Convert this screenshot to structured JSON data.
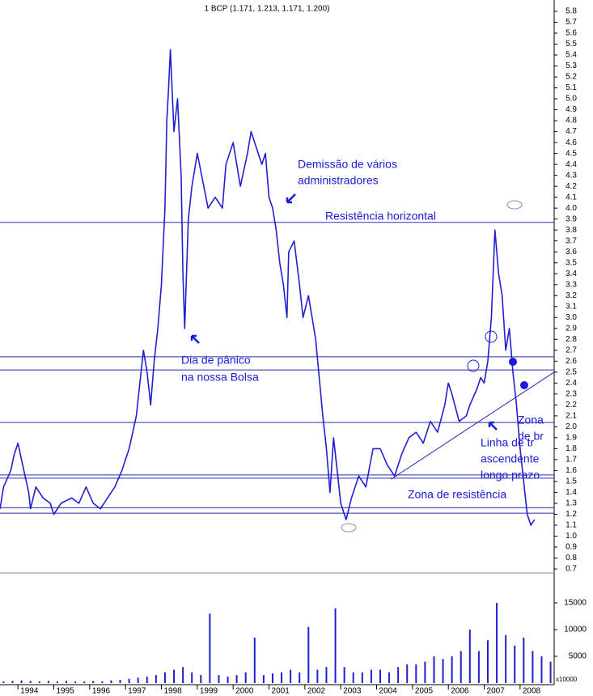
{
  "chart_data": {
    "type": "line",
    "title": "1 BCP (1.171, 1.213, 1.171, 1.200)",
    "color": "#2020d0",
    "x": [
      1993.5,
      1993.6,
      1993.8,
      1993.9,
      1994.0,
      1994.1,
      1994.2,
      1994.3,
      1994.35,
      1994.5,
      1994.7,
      1994.9,
      1995.0,
      1995.2,
      1995.5,
      1995.7,
      1995.9,
      1996.1,
      1996.3,
      1996.5,
      1996.7,
      1996.9,
      1997.1,
      1997.3,
      1997.4,
      1997.5,
      1997.6,
      1997.7,
      1997.8,
      1997.9,
      1998.0,
      1998.1,
      1998.15,
      1998.2,
      1998.25,
      1998.35,
      1998.45,
      1998.55,
      1998.6,
      1998.65,
      1998.75,
      1998.85,
      1999.0,
      1999.3,
      1999.5,
      1999.7,
      1999.8,
      2000.0,
      2000.2,
      2000.4,
      2000.5,
      2000.6,
      2000.8,
      2000.9,
      2001.0,
      2001.1,
      2001.2,
      2001.3,
      2001.4,
      2001.5,
      2001.55,
      2001.7,
      2001.85,
      2001.95,
      2002.1,
      2002.3,
      2002.5,
      2002.6,
      2002.7,
      2002.8,
      2002.9,
      2003.0,
      2003.15,
      2003.3,
      2003.5,
      2003.7,
      2003.9,
      2004.1,
      2004.3,
      2004.5,
      2004.7,
      2004.9,
      2005.1,
      2005.3,
      2005.5,
      2005.7,
      2005.9,
      2006.0,
      2006.1,
      2006.3,
      2006.5,
      2006.6,
      2006.8,
      2006.9,
      2007.0,
      2007.1,
      2007.2,
      2007.3,
      2007.4,
      2007.5,
      2007.6,
      2007.7,
      2007.8,
      2007.9,
      2008.0,
      2008.1,
      2008.2,
      2008.3,
      2008.4
    ],
    "values": [
      1.25,
      1.45,
      1.6,
      1.75,
      1.85,
      1.7,
      1.55,
      1.4,
      1.25,
      1.45,
      1.35,
      1.3,
      1.2,
      1.3,
      1.35,
      1.3,
      1.45,
      1.3,
      1.25,
      1.35,
      1.45,
      1.6,
      1.8,
      2.1,
      2.4,
      2.7,
      2.5,
      2.2,
      2.6,
      2.9,
      3.3,
      4.0,
      4.8,
      5.1,
      5.45,
      4.7,
      5.0,
      4.3,
      3.4,
      2.9,
      3.9,
      4.2,
      4.5,
      4.0,
      4.1,
      4.0,
      4.4,
      4.6,
      4.2,
      4.5,
      4.7,
      4.6,
      4.4,
      4.5,
      4.1,
      4.0,
      3.8,
      3.5,
      3.3,
      3.0,
      3.6,
      3.7,
      3.3,
      3.0,
      3.2,
      2.8,
      2.1,
      1.8,
      1.4,
      1.9,
      1.6,
      1.3,
      1.15,
      1.35,
      1.55,
      1.45,
      1.8,
      1.8,
      1.65,
      1.55,
      1.75,
      1.9,
      1.95,
      1.85,
      2.05,
      1.95,
      2.2,
      2.4,
      2.3,
      2.05,
      2.1,
      2.2,
      2.35,
      2.45,
      2.4,
      2.6,
      3.0,
      3.8,
      3.4,
      3.2,
      2.7,
      2.9,
      2.5,
      2.2,
      1.8,
      1.5,
      1.2,
      1.1,
      1.15
    ],
    "xlim": [
      1993.5,
      2008.95
    ],
    "xticks": [
      1994,
      1995,
      1996,
      1997,
      1998,
      1999,
      2000,
      2001,
      2002,
      2003,
      2004,
      2005,
      2006,
      2007,
      2008
    ],
    "ylim": [
      0.7,
      5.8
    ],
    "yticks": [
      0.7,
      0.8,
      0.9,
      {
        "value": 1,
        "label": "1.0"
      },
      1.1,
      1.2,
      1.3,
      1.4,
      1.5,
      1.6,
      1.7,
      1.8,
      1.9,
      {
        "value": 2,
        "label": "2.0"
      },
      2.1,
      2.2,
      2.3,
      2.4,
      2.5,
      2.6,
      2.7,
      2.8,
      2.9,
      {
        "value": 3,
        "label": "3.0"
      },
      3.1,
      3.2,
      3.3,
      3.4,
      3.5,
      3.6,
      3.7,
      3.8,
      3.9,
      {
        "value": 4,
        "label": "4.0"
      },
      4.1,
      4.2,
      4.3,
      4.4,
      4.5,
      4.6,
      4.7,
      4.8,
      4.9,
      {
        "value": 5,
        "label": "5.0"
      },
      5.1,
      5.2,
      5.3,
      5.4,
      5.5,
      5.6,
      5.7,
      5.8
    ],
    "levels": [
      3.87,
      2.64,
      2.52,
      2.04,
      1.56,
      1.53,
      1.26,
      1.21
    ],
    "trendline": {
      "x": [
        2004.4,
        2008.95
      ],
      "y": [
        1.52,
        2.5
      ]
    },
    "volume": {
      "axis_label": "x10000",
      "x": [
        1993.6,
        1993.85,
        1994.1,
        1994.35,
        1994.6,
        1994.85,
        1995.1,
        1995.35,
        1995.6,
        1995.85,
        1996.1,
        1996.35,
        1996.6,
        1996.85,
        1997.1,
        1997.35,
        1997.6,
        1997.85,
        1998.1,
        1998.35,
        1998.6,
        1998.85,
        1999.1,
        1999.35,
        1999.6,
        1999.85,
        2000.1,
        2000.35,
        2000.6,
        2000.85,
        2001.1,
        2001.35,
        2001.6,
        2001.85,
        2002.1,
        2002.35,
        2002.6,
        2002.85,
        2003.1,
        2003.35,
        2003.6,
        2003.85,
        2004.1,
        2004.35,
        2004.6,
        2004.85,
        2005.1,
        2005.35,
        2005.6,
        2005.85,
        2006.1,
        2006.35,
        2006.6,
        2006.85,
        2007.1,
        2007.35,
        2007.6,
        2007.85,
        2008.1,
        2008.35,
        2008.6,
        2008.85
      ],
      "values": [
        300,
        400,
        500,
        400,
        300,
        400,
        300,
        400,
        300,
        300,
        400,
        300,
        500,
        600,
        800,
        1000,
        1200,
        1500,
        2000,
        2500,
        3000,
        2000,
        1500,
        13000,
        1500,
        1200,
        1500,
        2000,
        8500,
        1500,
        1800,
        2000,
        2500,
        2000,
        10500,
        2500,
        3000,
        14000,
        3000,
        2000,
        2000,
        2500,
        2500,
        2000,
        3000,
        3500,
        3500,
        4000,
        5000,
        4500,
        5000,
        6000,
        10000,
        6000,
        8000,
        15000,
        9000,
        7000,
        8500,
        6000,
        5000,
        4000
      ],
      "ylim": [
        0,
        20000
      ],
      "yticks": [
        5000,
        10000,
        15000
      ]
    },
    "annotations": {
      "demissao": [
        "Demissão de vários",
        "administradores"
      ],
      "resistencia": "Resistência horizontal",
      "panico": [
        "Dia de pânico",
        "na nossa Bolsa"
      ],
      "linha": [
        "Linha de tr",
        "ascendente",
        "longo prazo"
      ],
      "zona_br": [
        "Zona",
        "de br"
      ],
      "zona_resistencia": "Zona de resistência"
    }
  }
}
